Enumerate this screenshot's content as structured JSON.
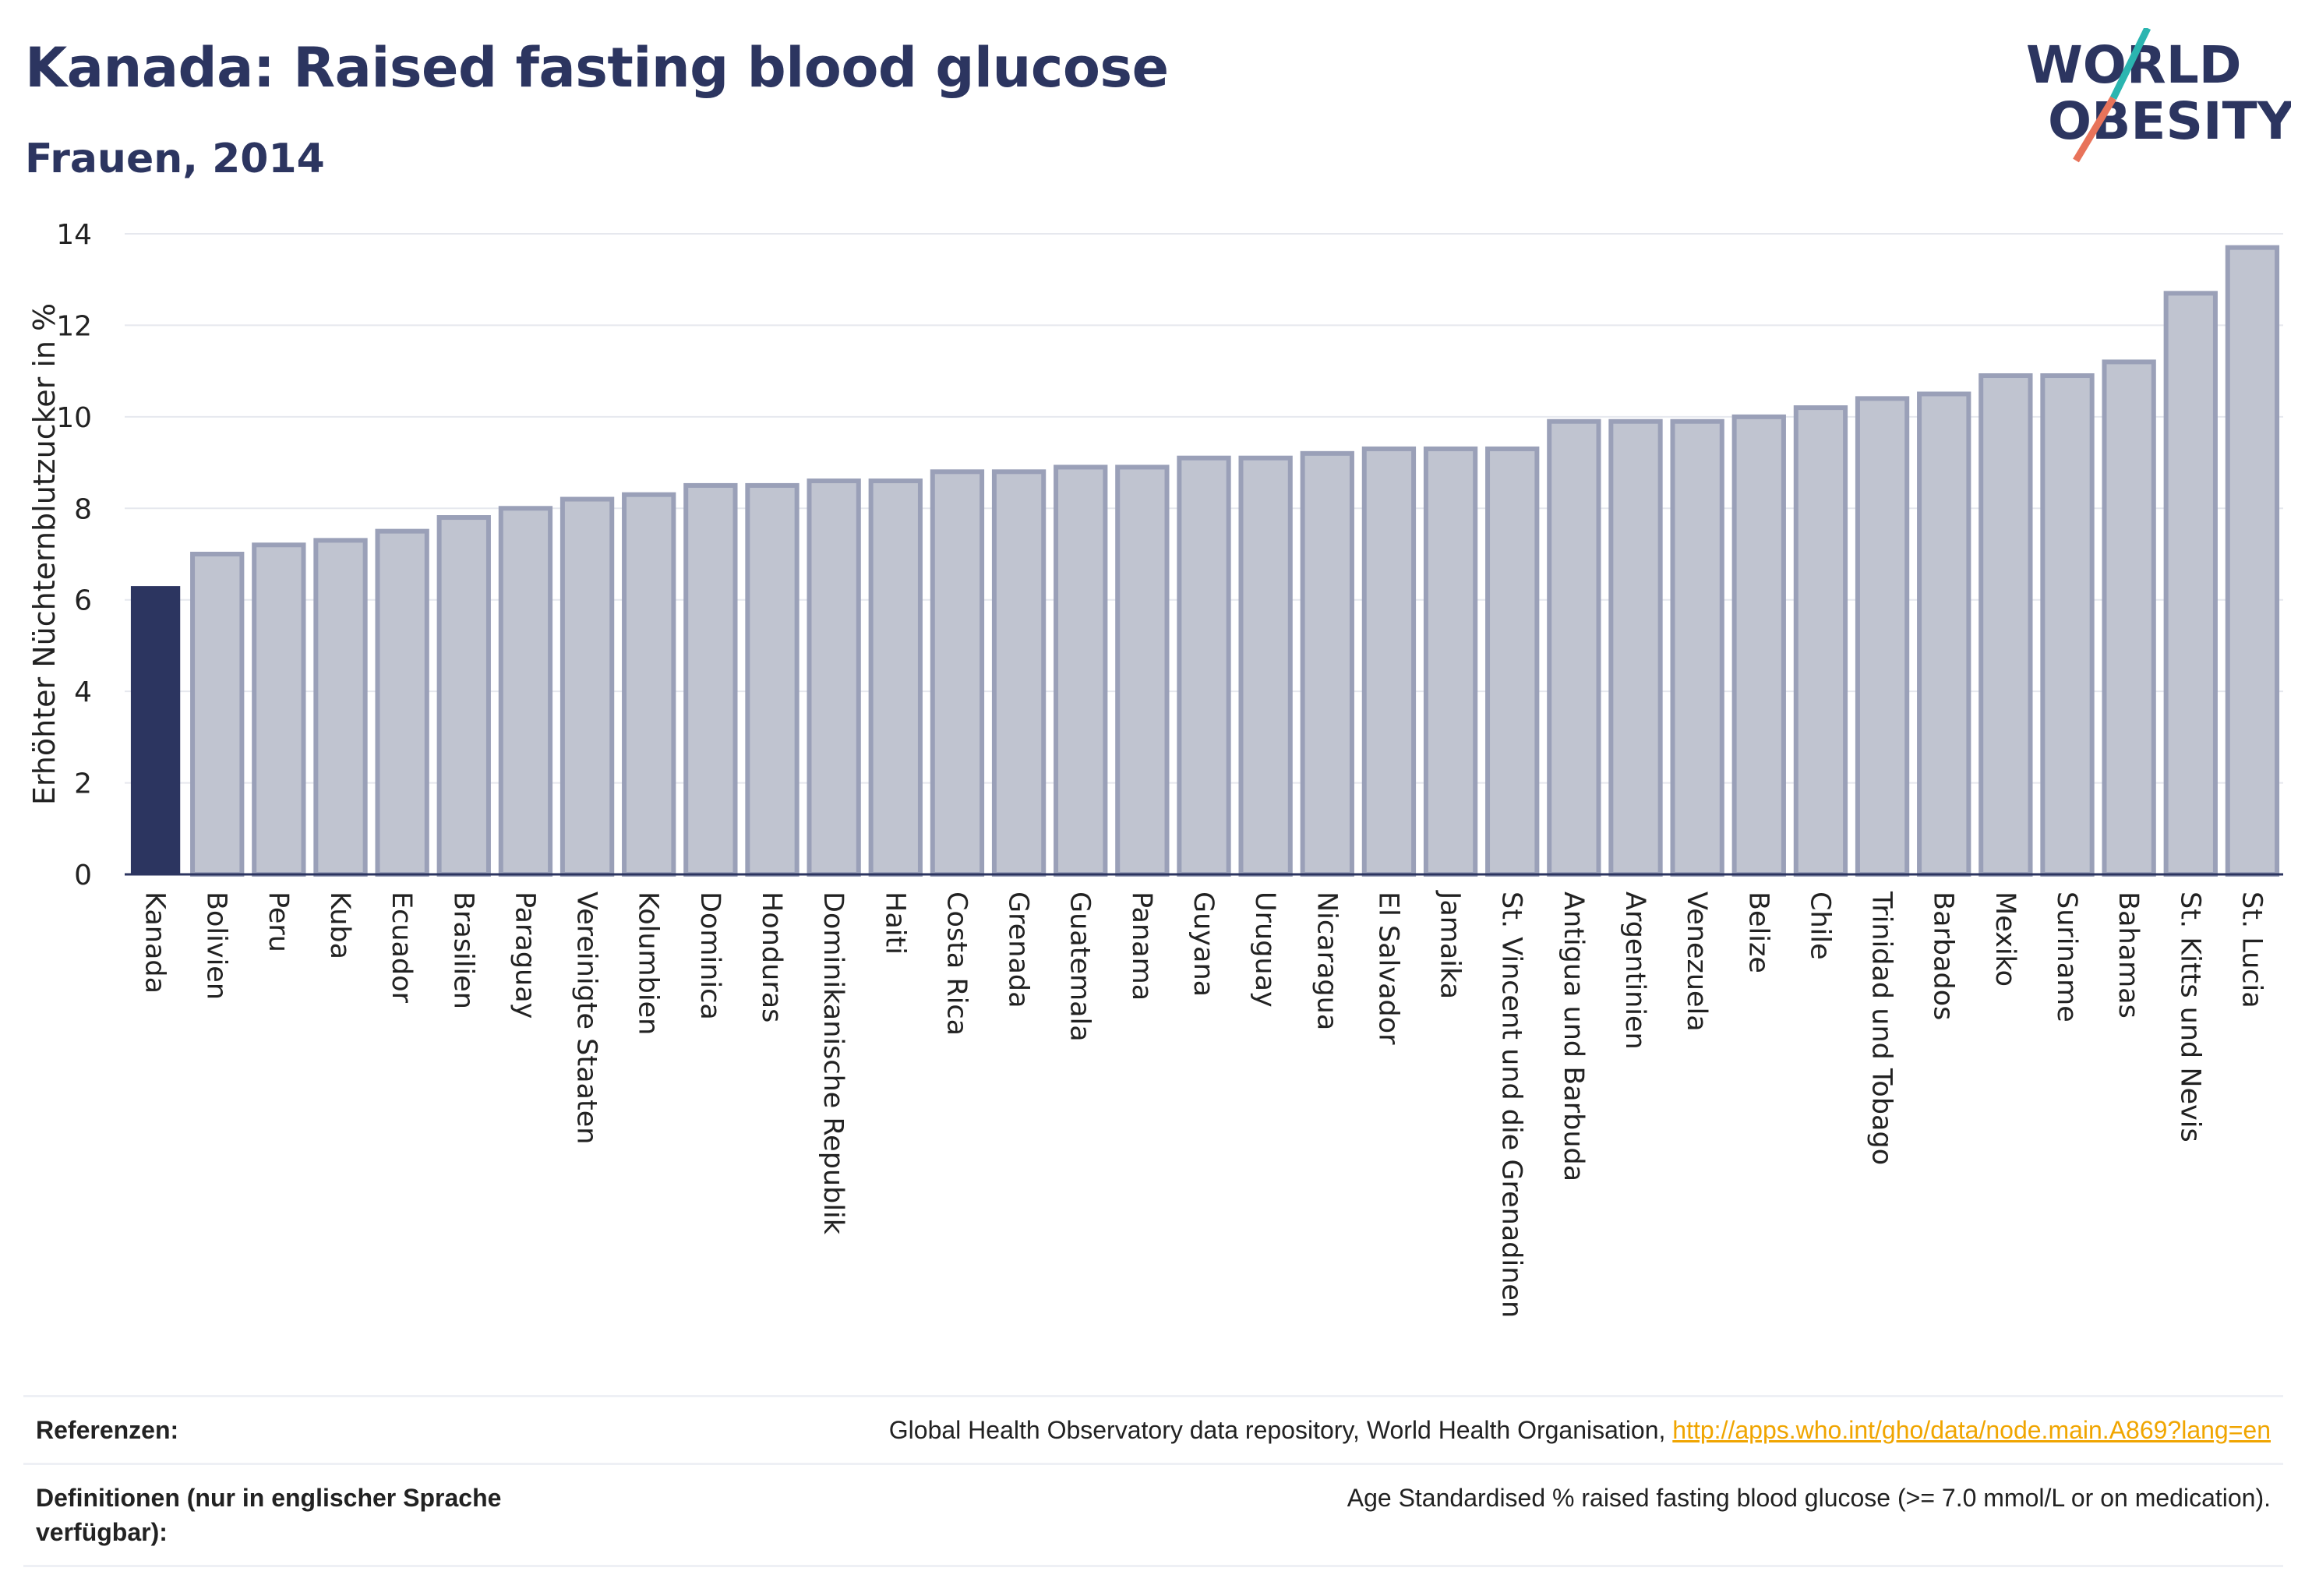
{
  "header": {
    "title": "Kanada: Raised fasting blood glucose",
    "subtitle": "Frauen, 2014"
  },
  "logo": {
    "line1": "WORLD",
    "line2": "OBESITY",
    "colors": {
      "text": "#2c3560",
      "slash_top": "#2bb5b0",
      "slash_bottom": "#e8735a"
    }
  },
  "chart_data": {
    "type": "bar",
    "ylabel": "Erhöhter Nüchternblutzucker in %",
    "xlabel": "",
    "ylim": [
      0,
      14
    ],
    "yticks": [
      0,
      2,
      4,
      6,
      8,
      10,
      12,
      14
    ],
    "grid": true,
    "highlight": "Kanada",
    "colors": {
      "highlight": "#2c3560",
      "bar": "#c0c4d0",
      "bar_border": "#9aa0b8"
    },
    "categories": [
      "Kanada",
      "Bolivien",
      "Peru",
      "Kuba",
      "Ecuador",
      "Brasilien",
      "Paraguay",
      "Vereinigte Staaten",
      "Kolumbien",
      "Dominica",
      "Honduras",
      "Dominikanische Republik",
      "Haiti",
      "Costa Rica",
      "Grenada",
      "Guatemala",
      "Panama",
      "Guyana",
      "Uruguay",
      "Nicaragua",
      "El Salvador",
      "Jamaika",
      "St. Vincent und die Grenadinen",
      "Antigua und Barbuda",
      "Argentinien",
      "Venezuela",
      "Belize",
      "Chile",
      "Trinidad und Tobago",
      "Barbados",
      "Mexiko",
      "Suriname",
      "Bahamas",
      "St. Kitts und Nevis",
      "St. Lucia"
    ],
    "values": [
      6.3,
      7.0,
      7.2,
      7.3,
      7.5,
      7.8,
      8.0,
      8.2,
      8.3,
      8.5,
      8.5,
      8.6,
      8.6,
      8.8,
      8.8,
      8.9,
      8.9,
      9.1,
      9.1,
      9.2,
      9.3,
      9.3,
      9.3,
      9.9,
      9.9,
      9.9,
      10.0,
      10.2,
      10.4,
      10.5,
      10.9,
      10.9,
      11.2,
      12.7,
      13.7
    ]
  },
  "references": {
    "ref_label": "Referenzen:",
    "ref_text": "Global Health Observatory data repository, World Health Organisation, ",
    "ref_link": "http://apps.who.int/gho/data/node.main.A869?lang=en",
    "def_label": "Definitionen (nur in englischer Sprache verfügbar):",
    "def_text": "Age Standardised % raised fasting blood glucose (>= 7.0 mmol/L or on medication)."
  }
}
